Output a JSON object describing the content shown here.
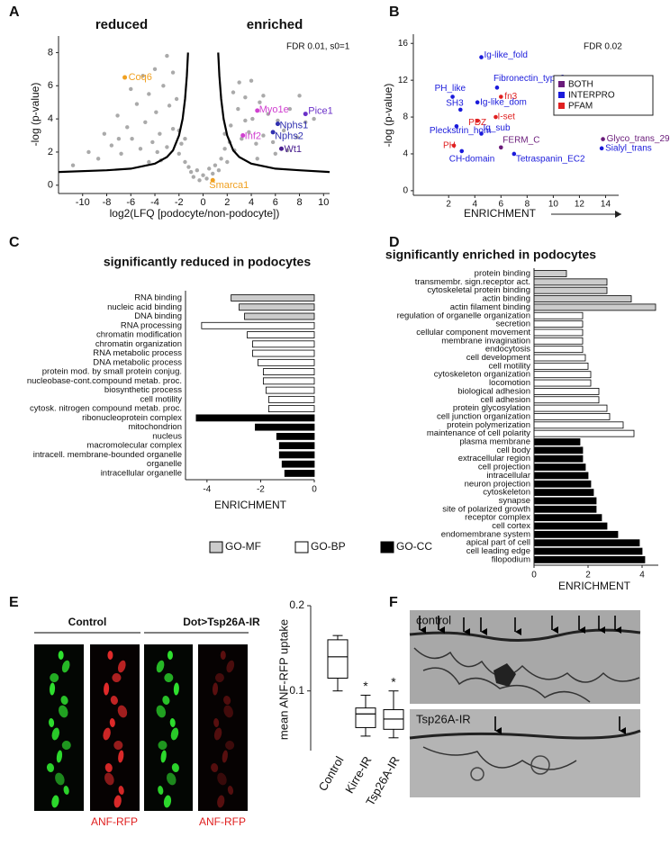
{
  "chart_data": [
    {
      "type": "scatter",
      "panel": "A",
      "annotations": [
        "reduced",
        "enriched",
        "FDR 0.01, s0=1"
      ],
      "x_label": "log2(LFQ [podocyte/non-podocyte])",
      "y_label": "-log (p-value)",
      "xlim": [
        -12,
        10.5
      ],
      "ylim": [
        -0.5,
        9
      ],
      "xticks": [
        -10,
        -8,
        -6,
        -4,
        -2,
        0,
        2,
        4,
        6,
        8,
        10
      ],
      "yticks": [
        0,
        2,
        4,
        6,
        8
      ],
      "color": "#aaaaaa",
      "x": [
        -9.5,
        -8.7,
        -8.2,
        -7.6,
        -7.1,
        -6.8,
        -6.3,
        -5.9,
        -5.5,
        -5.2,
        -4.8,
        -4.5,
        -4.2,
        -3.9,
        -3.6,
        -3.3,
        -3.0,
        -2.8,
        -2.5,
        -2.2,
        -2.0,
        -1.8,
        -1.5,
        -1.2,
        -1.0,
        -0.8,
        -0.5,
        -0.3,
        0,
        0.3,
        0.5,
        0.8,
        1.0,
        1.3,
        1.5,
        1.8,
        2.0,
        2.3,
        2.6,
        2.9,
        3.2,
        3.5,
        3.8,
        4.1,
        4.4,
        4.7,
        5.0,
        5.4,
        5.8,
        6.2,
        6.7,
        7.2,
        7.8,
        8.5,
        9.2,
        -6.0,
        -5.0,
        -4.0,
        -3.0,
        -2.5,
        2.5,
        3.0,
        3.5,
        4.0,
        5.0,
        -3.5,
        -2.0,
        -1.5,
        1.8,
        2.2,
        -7.0,
        -4.5,
        -3.8,
        4.5,
        6.0,
        7.0,
        -10.8,
        8.0
      ],
      "values": [
        2.0,
        1.6,
        3.1,
        2.4,
        4.2,
        1.9,
        3.5,
        2.8,
        4.9,
        2.2,
        3.8,
        5.5,
        2.6,
        4.4,
        3.1,
        6.0,
        2.3,
        4.8,
        3.4,
        5.2,
        1.9,
        2.5,
        1.4,
        1.1,
        0.8,
        0.5,
        0.9,
        0.3,
        0.6,
        0.4,
        1.0,
        0.7,
        1.2,
        0.9,
        1.6,
        2.2,
        1.4,
        3.6,
        2.1,
        4.6,
        2.8,
        5.3,
        3.2,
        4.0,
        2.5,
        5.0,
        3.0,
        4.3,
        2.6,
        3.9,
        3.3,
        4.6,
        2.9,
        3.8,
        4.0,
        5.8,
        6.6,
        7.0,
        7.8,
        6.8,
        5.6,
        6.2,
        3.9,
        6.3,
        5.4,
        1.5,
        3.3,
        2.8,
        3.1,
        2.6,
        2.8,
        1.4,
        2.0,
        1.6,
        1.9,
        2.1,
        1.2,
        5.4
      ],
      "points": [
        {
          "label": "Coq6",
          "x": -6.5,
          "y": 6.5,
          "color": "#f0a020"
        },
        {
          "label": "Myo1e",
          "x": 4.5,
          "y": 4.5,
          "color": "#d040d0"
        },
        {
          "label": "Pice1",
          "x": 8.5,
          "y": 4.3,
          "color": "#6a30c8"
        },
        {
          "label": "Nphs1",
          "x": 6.2,
          "y": 3.7,
          "color": "#3030b0"
        },
        {
          "label": "Nphs2",
          "x": 5.8,
          "y": 3.2,
          "color": "#3030b0"
        },
        {
          "label": "Inf2",
          "x": 3.3,
          "y": 3.0,
          "color": "#d040d0"
        },
        {
          "label": "Wt1",
          "x": 6.5,
          "y": 2.2,
          "color": "#4a2090"
        },
        {
          "label": "Smarca1",
          "x": 0.8,
          "y": 0.3,
          "color": "#f0a020"
        }
      ],
      "curves": [
        {
          "x": [
            -12,
            -8,
            -6,
            -4,
            -3,
            -2.5,
            -2,
            -1.7,
            -1.5,
            -1.35,
            -1.25
          ],
          "values": [
            0.8,
            0.9,
            1.0,
            1.3,
            1.7,
            2.1,
            3.0,
            4.0,
            5.2,
            6.6,
            8.0
          ]
        },
        {
          "x": [
            1.25,
            1.35,
            1.5,
            1.7,
            2,
            2.5,
            3,
            4,
            6,
            8,
            10.5
          ],
          "values": [
            8.0,
            6.6,
            5.2,
            4.0,
            3.0,
            2.1,
            1.7,
            1.3,
            1.0,
            0.9,
            0.8
          ]
        }
      ]
    },
    {
      "type": "scatter",
      "panel": "B",
      "annotations": [
        "FDR 0.02"
      ],
      "x_label": "ENRICHMENT",
      "y_label": "-log (p-value)",
      "xlim": [
        -0.7,
        15
      ],
      "ylim": [
        -0.5,
        17
      ],
      "xticks": [
        2,
        4,
        6,
        8,
        10,
        12,
        14
      ],
      "yticks": [
        0,
        4,
        8,
        12,
        16
      ],
      "legend_position": "upper right",
      "groups": [
        {
          "name": "BOTH",
          "color": "#6a1b7a"
        },
        {
          "name": "INTERPRO",
          "color": "#1a1adb"
        },
        {
          "name": "PFAM",
          "color": "#e02020"
        }
      ],
      "points": [
        {
          "label": "Ig-like_fold",
          "x": 4.5,
          "y": 14.5,
          "group": 1
        },
        {
          "label": "Fibronectin_type3",
          "x": 5.7,
          "y": 11.2,
          "group": 1
        },
        {
          "label": "fn3",
          "x": 6.0,
          "y": 10.2,
          "group": 2
        },
        {
          "label": "PH_like",
          "x": 2.3,
          "y": 10.2,
          "group": 1
        },
        {
          "label": "Ig-like_dom",
          "x": 4.2,
          "y": 9.6,
          "group": 1
        },
        {
          "label": "SH3",
          "x": 2.9,
          "y": 8.8,
          "group": 1
        },
        {
          "label": "I-set",
          "x": 5.6,
          "y": 8.0,
          "group": 2
        },
        {
          "label": "PDZ",
          "x": 4.2,
          "y": 7.6,
          "group": 2
        },
        {
          "label": "Pleckstrin_hom",
          "x": 2.6,
          "y": 7.0,
          "group": 1
        },
        {
          "label": "Ig_sub",
          "x": 4.5,
          "y": 6.2,
          "group": 1
        },
        {
          "label": "PH",
          "x": 2.4,
          "y": 4.9,
          "group": 2
        },
        {
          "label": "CH-domain",
          "x": 3.0,
          "y": 4.3,
          "group": 1
        },
        {
          "label": "FERM_C",
          "x": 6.0,
          "y": 4.7,
          "group": 0
        },
        {
          "label": "Tetraspanin_EC2",
          "x": 7.0,
          "y": 4.0,
          "group": 1
        },
        {
          "label": "Glyco_trans_29",
          "x": 13.8,
          "y": 5.6,
          "group": 0
        },
        {
          "label": "Sialyl_trans",
          "x": 13.7,
          "y": 4.6,
          "group": 1
        }
      ]
    },
    {
      "type": "barh",
      "panel": "C",
      "title": "significantly reduced in podocytes",
      "x_label": "ENRICHMENT",
      "xlim": [
        -4.8,
        0
      ],
      "xticks": [
        -4,
        -2,
        0
      ],
      "categories": [
        "RNA binding",
        "nucleic acid binding",
        "DNA binding",
        "RNA processing",
        "chromatin modification",
        "chromatin organization",
        "RNA metabolic process",
        "DNA metabolic process",
        "protein mod. by small protein conjug.",
        "nucleobase-cont.compound metab. proc.",
        "biosynthetic process",
        "cell motility",
        "cytosk. nitrogen compound metab. proc.",
        "ribonucleoprotein complex",
        "mitochondrion",
        "nucleus",
        "macromolecular complex",
        "intracell. membrane-bounded organelle",
        "organelle",
        "intracellular organelle"
      ],
      "values": [
        -3.1,
        -2.8,
        -2.6,
        -4.2,
        -2.5,
        -2.3,
        -2.3,
        -2.1,
        -1.9,
        -1.9,
        -1.8,
        -1.7,
        -1.7,
        -4.4,
        -2.2,
        -1.4,
        -1.3,
        -1.3,
        -1.2,
        -1.1
      ],
      "group": [
        0,
        0,
        0,
        1,
        1,
        1,
        1,
        1,
        1,
        1,
        1,
        1,
        1,
        2,
        2,
        2,
        2,
        2,
        2,
        2
      ],
      "groups": [
        {
          "name": "GO-MF",
          "color": "#cccccc"
        },
        {
          "name": "GO-BP",
          "color": "#ffffff"
        },
        {
          "name": "GO-CC",
          "color": "#000000"
        }
      ]
    },
    {
      "type": "barh",
      "panel": "D",
      "title": "significantly enriched in podocytes",
      "x_label": "ENRICHMENT",
      "xlim": [
        0,
        4.6
      ],
      "xticks": [
        0,
        2,
        4
      ],
      "categories": [
        "protein binding",
        "transmembr. sign.receptor act.",
        "cytoskeletal protein binding",
        "actin binding",
        "actin filament binding",
        "regulation of organelle organization",
        "secretion",
        "cellular component movement",
        "membrane invagination",
        "endocytosis",
        "cell development",
        "cell motility",
        "cytoskeleton organization",
        "locomotion",
        "biological adhesion",
        "cell adhesion",
        "protein glycosylation",
        "cell junction organization",
        "protein polymerization",
        "maintenance of cell polarity",
        "plasma membrane",
        "cell body",
        "extracellular region",
        "cell projection",
        "intracellular",
        "neuron projection",
        "cytoskeleton",
        "synapse",
        "site of polarized growth",
        "receptor complex",
        "cell cortex",
        "endomembrane system",
        "apical part of cell",
        "cell leading edge",
        "filopodium"
      ],
      "values": [
        1.2,
        2.7,
        2.7,
        3.6,
        4.5,
        1.8,
        1.8,
        1.8,
        1.8,
        1.8,
        1.9,
        2.0,
        2.1,
        2.1,
        2.4,
        2.4,
        2.7,
        2.8,
        3.3,
        3.7,
        1.7,
        1.8,
        1.8,
        1.9,
        2.0,
        2.1,
        2.2,
        2.3,
        2.3,
        2.5,
        2.7,
        3.1,
        3.9,
        4.0,
        4.1
      ],
      "group": [
        0,
        0,
        0,
        0,
        0,
        1,
        1,
        1,
        1,
        1,
        1,
        1,
        1,
        1,
        1,
        1,
        1,
        1,
        1,
        1,
        2,
        2,
        2,
        2,
        2,
        2,
        2,
        2,
        2,
        2,
        2,
        2,
        2,
        2,
        2
      ],
      "group_colors": [
        "#cccccc",
        "#ffffff",
        "#000000"
      ]
    },
    {
      "type": "box",
      "y_label": "mean ANF-RFP uptake",
      "ylim": [
        0.03,
        0.2
      ],
      "yticks": [
        0.1,
        0.2
      ],
      "categories": [
        "Control",
        "Kirre-IR",
        "Tsp26A-IR"
      ],
      "boxes": [
        {
          "min": 0.1,
          "q1": 0.115,
          "median": 0.14,
          "q3": 0.16,
          "max": 0.165
        },
        {
          "min": 0.047,
          "q1": 0.057,
          "median": 0.073,
          "q3": 0.08,
          "max": 0.095
        },
        {
          "min": 0.045,
          "q1": 0.055,
          "median": 0.067,
          "q3": 0.078,
          "max": 0.1
        }
      ],
      "annotations": [
        null,
        "*",
        "*"
      ]
    }
  ],
  "figure_e": {
    "panel": "E",
    "headers": [
      "Control",
      "Dot>Tsp26A-IR"
    ],
    "captions": [
      "ANF-RFP",
      "ANF-RFP"
    ]
  },
  "figure_f": {
    "panel": "F",
    "labels": [
      "control",
      "Tsp26A-IR"
    ]
  }
}
